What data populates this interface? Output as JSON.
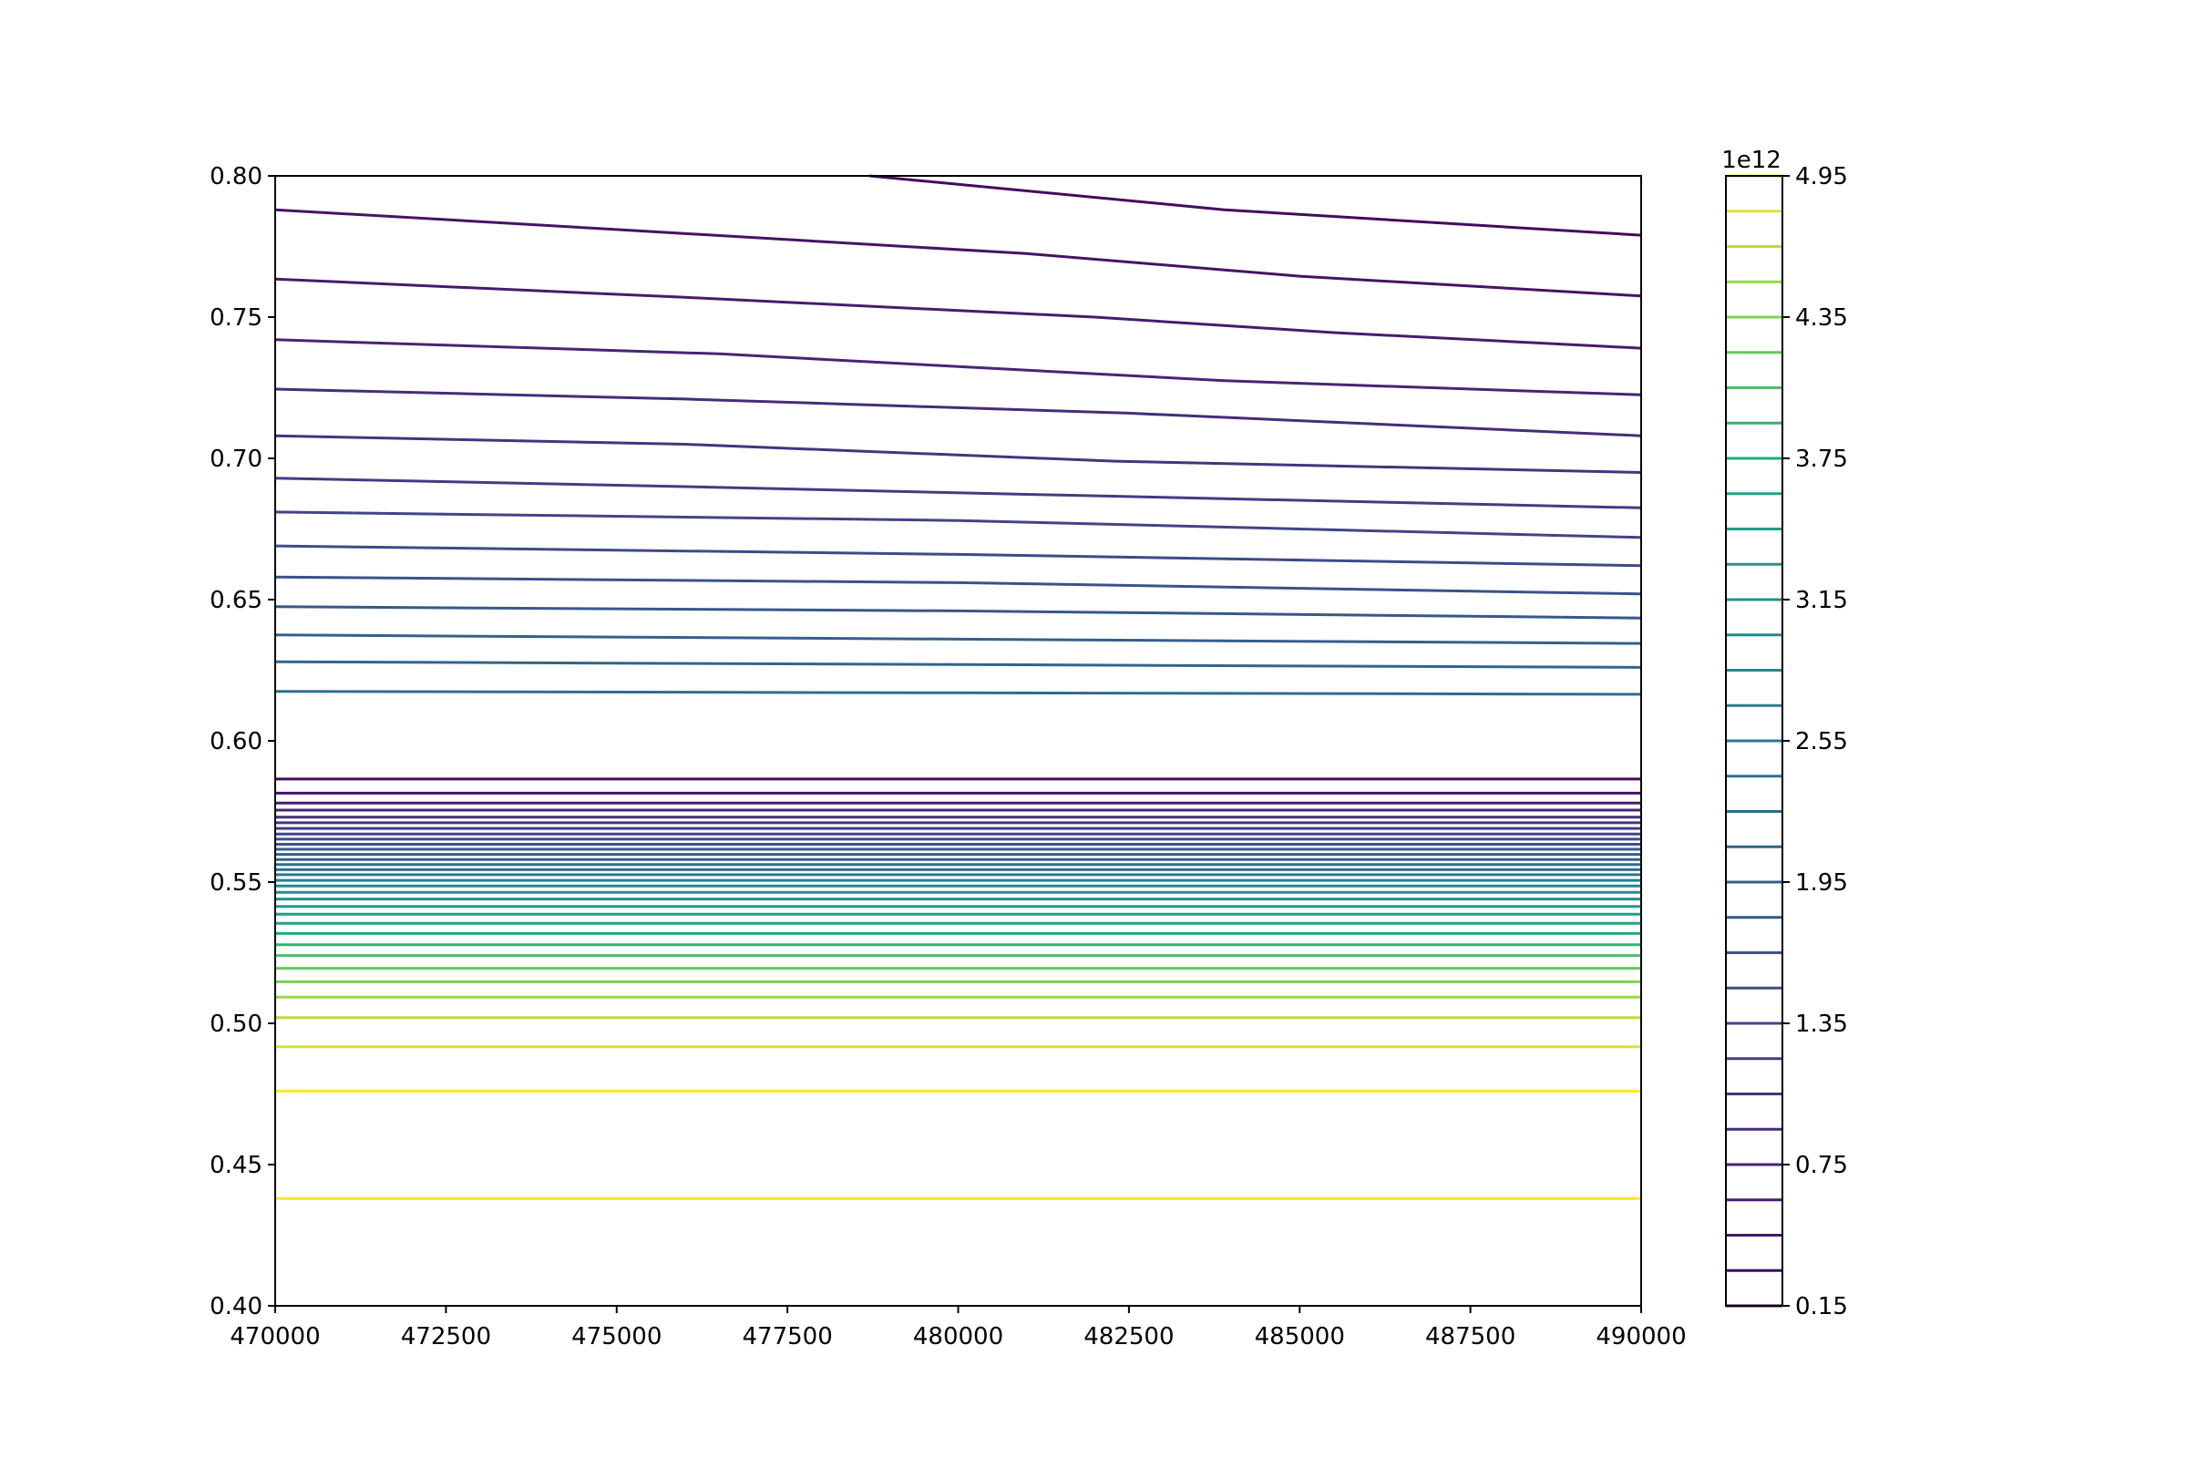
{
  "chart_data": {
    "type": "contour",
    "title": "",
    "xlabel": "",
    "ylabel": "",
    "xlim": [
      470000,
      490000
    ],
    "ylim": [
      0.4,
      0.8
    ],
    "x_ticks": [
      "470000",
      "472500",
      "475000",
      "477500",
      "480000",
      "482500",
      "485000",
      "487500",
      "490000"
    ],
    "y_ticks": [
      "0.40",
      "0.45",
      "0.50",
      "0.55",
      "0.60",
      "0.65",
      "0.70",
      "0.75",
      "0.80"
    ],
    "grid": false,
    "colormap": "viridis",
    "colorbar": {
      "min": 0.15,
      "max": 4.95,
      "step": 0.15,
      "multiplier_label": "1e12",
      "tick_labels": [
        "0.15",
        "0.75",
        "1.35",
        "1.95",
        "2.55",
        "3.15",
        "3.75",
        "4.35",
        "4.95"
      ]
    },
    "upper_contours": [
      {
        "points": [
          [
            478700,
            0.8
          ],
          [
            483900,
            0.788
          ],
          [
            490000,
            0.779
          ]
        ]
      },
      {
        "points": [
          [
            470000,
            0.788
          ],
          [
            475000,
            0.781
          ],
          [
            481000,
            0.7725
          ],
          [
            485000,
            0.7645
          ],
          [
            490000,
            0.7575
          ]
        ]
      },
      {
        "points": [
          [
            470000,
            0.7635
          ],
          [
            476000,
            0.757
          ],
          [
            482000,
            0.75
          ],
          [
            485500,
            0.7445
          ],
          [
            490000,
            0.739
          ]
        ]
      },
      {
        "points": [
          [
            470000,
            0.742
          ],
          [
            476500,
            0.737
          ],
          [
            483900,
            0.7275
          ],
          [
            490000,
            0.7225
          ]
        ]
      },
      {
        "points": [
          [
            470000,
            0.7245
          ],
          [
            476000,
            0.721
          ],
          [
            482500,
            0.716
          ],
          [
            490000,
            0.708
          ]
        ]
      },
      {
        "points": [
          [
            470000,
            0.708
          ],
          [
            476000,
            0.705
          ],
          [
            482300,
            0.699
          ],
          [
            490000,
            0.695
          ]
        ]
      },
      {
        "points": [
          [
            470000,
            0.693
          ],
          [
            476000,
            0.69
          ],
          [
            481500,
            0.687
          ],
          [
            490000,
            0.6825
          ]
        ]
      },
      {
        "points": [
          [
            470000,
            0.681
          ],
          [
            480000,
            0.678
          ],
          [
            490000,
            0.672
          ]
        ]
      },
      {
        "points": [
          [
            470000,
            0.669
          ],
          [
            480000,
            0.666
          ],
          [
            490000,
            0.662
          ]
        ]
      },
      {
        "points": [
          [
            470000,
            0.658
          ],
          [
            480000,
            0.656
          ],
          [
            490000,
            0.652
          ]
        ]
      },
      {
        "points": [
          [
            470000,
            0.6475
          ],
          [
            480000,
            0.646
          ],
          [
            490000,
            0.6435
          ]
        ]
      },
      {
        "points": [
          [
            470000,
            0.6375
          ],
          [
            480000,
            0.636
          ],
          [
            490000,
            0.6345
          ]
        ]
      },
      {
        "points": [
          [
            470000,
            0.628
          ],
          [
            480000,
            0.627
          ],
          [
            490000,
            0.626
          ]
        ]
      },
      {
        "points": [
          [
            470000,
            0.6175
          ],
          [
            480000,
            0.617
          ],
          [
            490000,
            0.6165
          ]
        ]
      }
    ],
    "lower_contour_levels_y": [
      0.5865,
      0.5815,
      0.578,
      0.5755,
      0.573,
      0.571,
      0.569,
      0.567,
      0.5652,
      0.5634,
      0.5616,
      0.5598,
      0.558,
      0.5562,
      0.5544,
      0.5526,
      0.5506,
      0.5486,
      0.5464,
      0.544,
      0.5414,
      0.5386,
      0.5354,
      0.5318,
      0.5278,
      0.524,
      0.5195,
      0.5147,
      0.5093,
      0.502,
      0.4917,
      0.476,
      0.438
    ]
  }
}
